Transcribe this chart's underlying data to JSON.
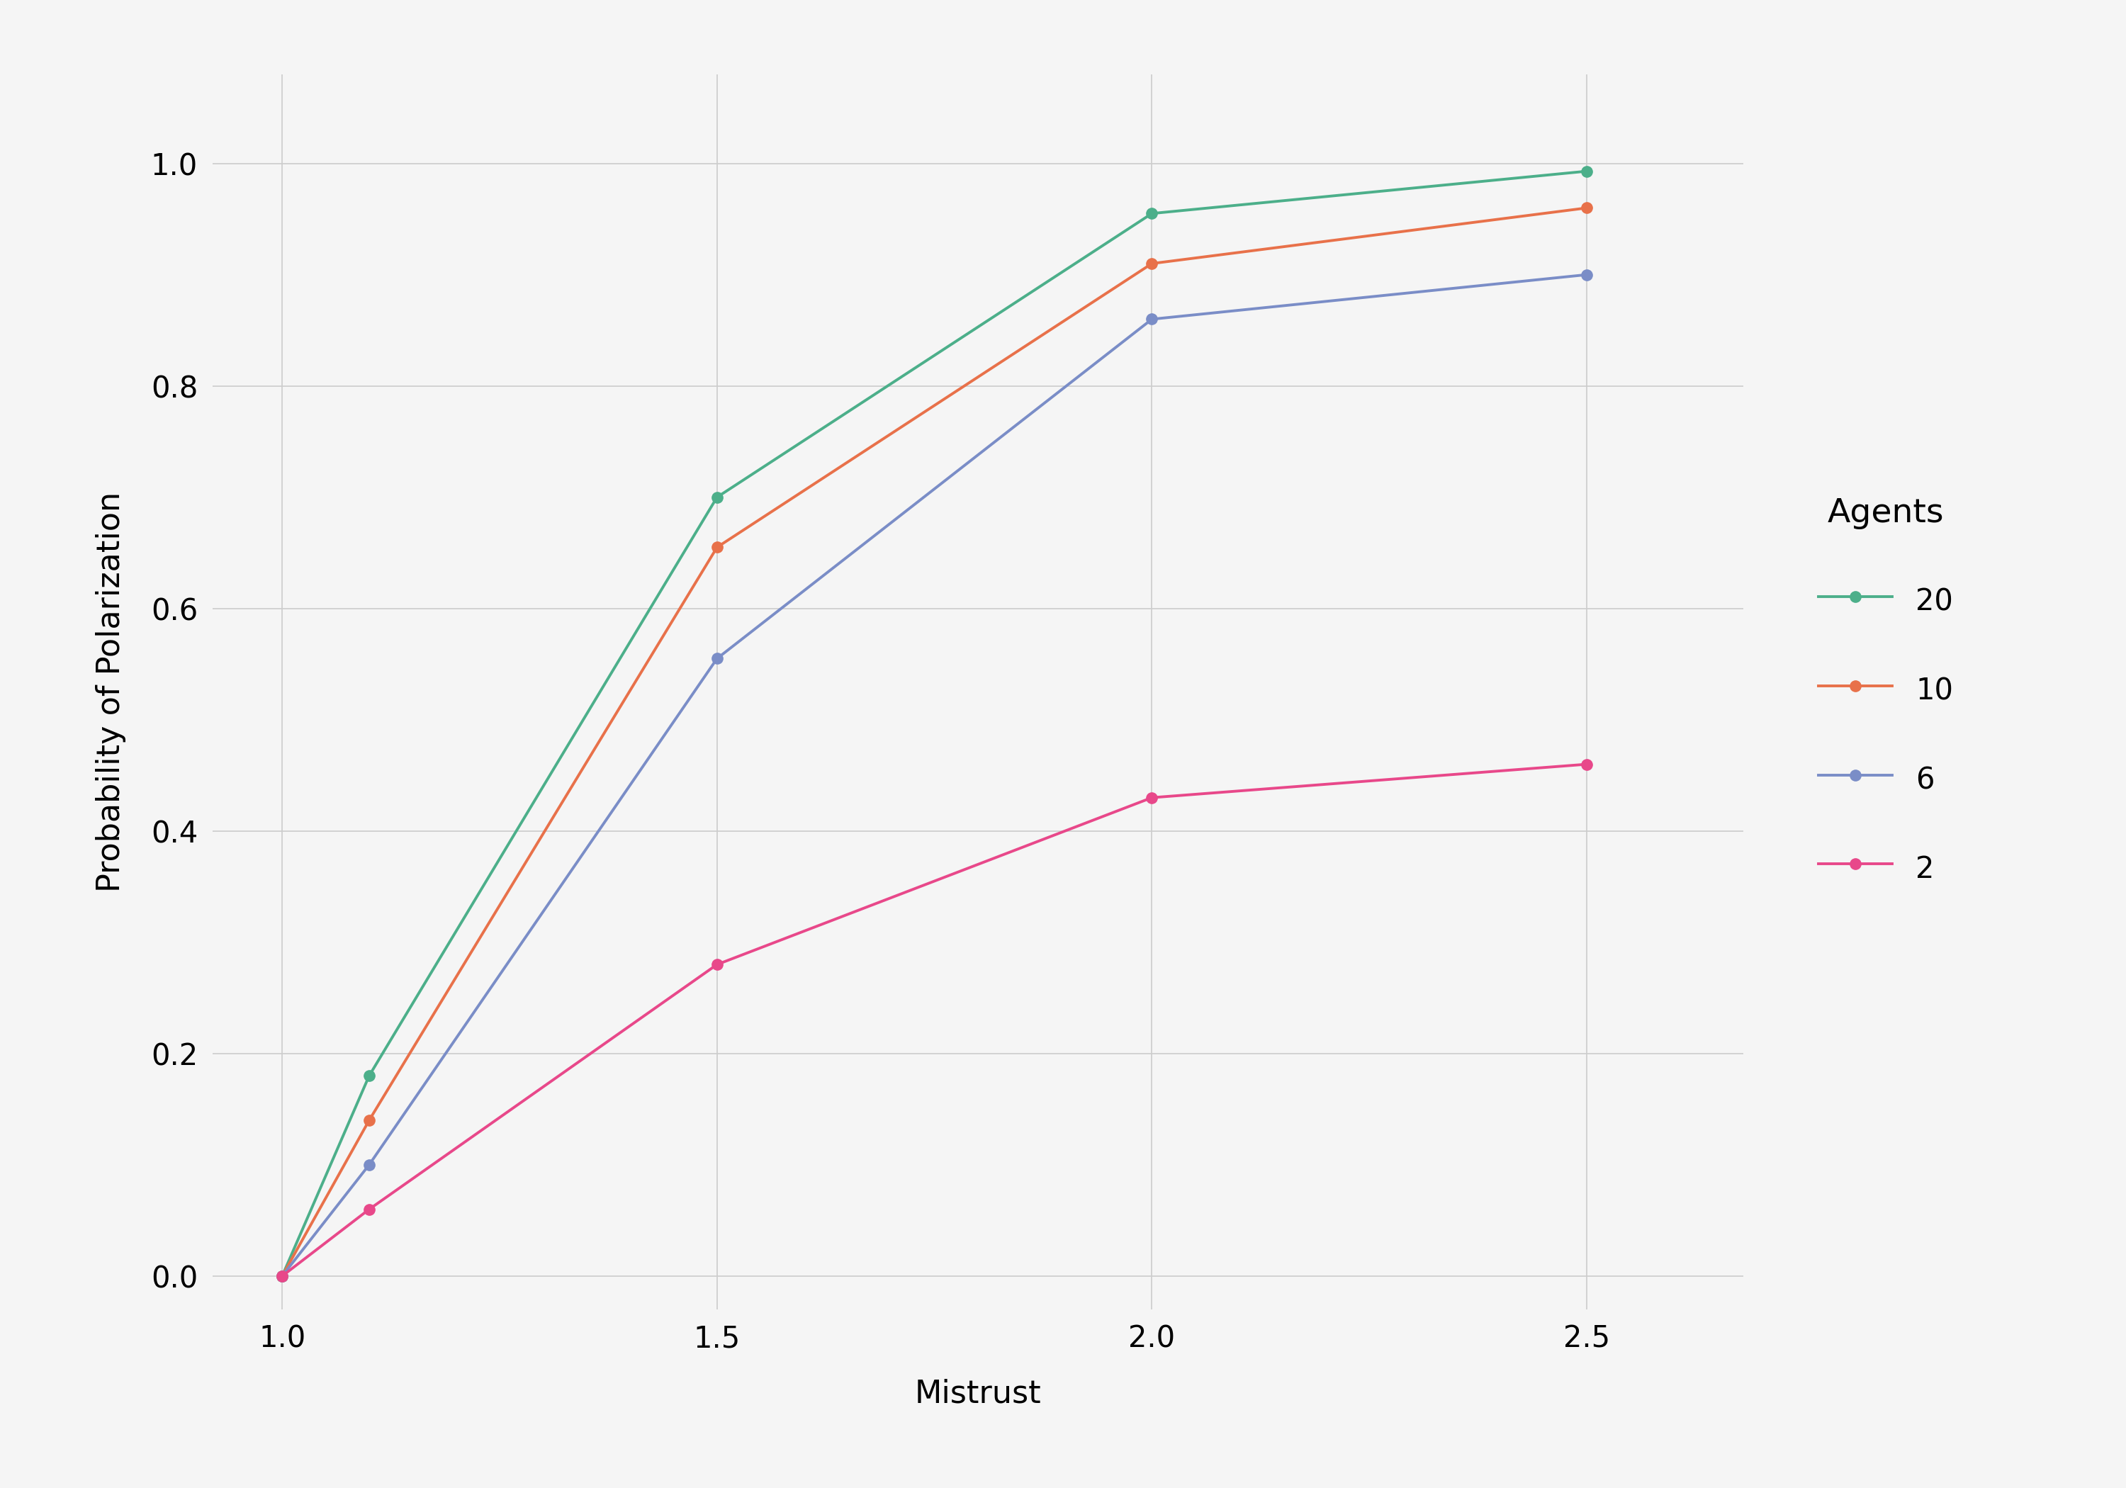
{
  "title": "",
  "xlabel": "Mistrust",
  "ylabel": "Probability of Polarization",
  "x": [
    1.0,
    1.1,
    1.5,
    2.0,
    2.5
  ],
  "series": [
    {
      "label": "20",
      "color": "#4CAF8A",
      "y": [
        0.0,
        0.18,
        0.7,
        0.955,
        0.993
      ]
    },
    {
      "label": "10",
      "color": "#E8714A",
      "y": [
        0.0,
        0.14,
        0.655,
        0.91,
        0.96
      ]
    },
    {
      "label": "6",
      "color": "#7A8DC7",
      "y": [
        0.0,
        0.1,
        0.555,
        0.86,
        0.9
      ]
    },
    {
      "label": "2",
      "color": "#E8488A",
      "y": [
        0.0,
        0.06,
        0.28,
        0.43,
        0.46
      ]
    }
  ],
  "legend_title": "Agents",
  "xlim": [
    0.92,
    2.68
  ],
  "ylim": [
    -0.03,
    1.08
  ],
  "xticks": [
    1.0,
    1.5,
    2.0,
    2.5
  ],
  "yticks": [
    0.0,
    0.2,
    0.4,
    0.6,
    0.8,
    1.0
  ],
  "background_color": "#f5f5f5",
  "grid_color": "#cccccc",
  "marker": "o",
  "linewidth": 2.8,
  "markersize": 11,
  "label_font_size": 32,
  "legend_title_font_size": 34,
  "legend_font_size": 30,
  "tick_font_size": 30
}
